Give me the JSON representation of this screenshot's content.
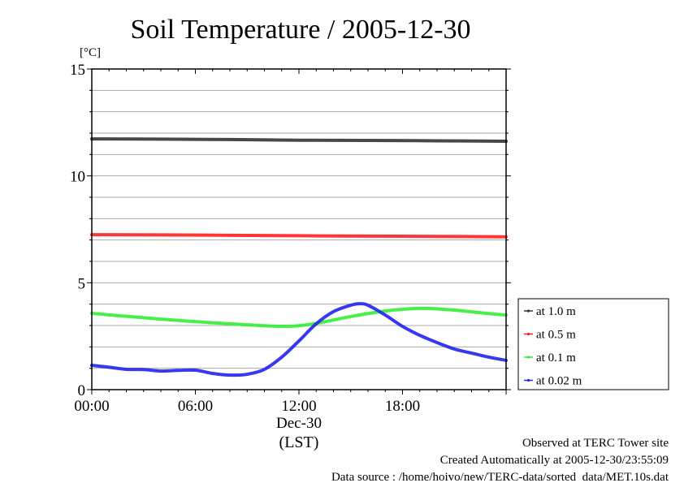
{
  "chart_data": {
    "type": "line",
    "title": "Soil Temperature / 2005-12-30",
    "ylabel": "[°C]",
    "xlabel": "(LST)",
    "date_label": "Dec-30",
    "ylim": [
      0,
      15
    ],
    "xlim": [
      0,
      24
    ],
    "yticks": [
      0,
      5,
      10,
      15
    ],
    "ytick_labels": [
      "0",
      "5",
      "10",
      "15"
    ],
    "xticks": [
      0,
      6,
      12,
      18
    ],
    "xtick_labels": [
      "00:00",
      "06:00",
      "12:00",
      "18:00"
    ],
    "grid": true,
    "legend_position": "right",
    "series": [
      {
        "name": "at 1.0 m",
        "color": "#333333",
        "x": [
          0,
          4,
          8,
          12,
          16,
          20,
          24
        ],
        "values": [
          11.73,
          11.72,
          11.7,
          11.67,
          11.66,
          11.64,
          11.62
        ]
      },
      {
        "name": "at 0.5 m",
        "color": "#ff2020",
        "x": [
          0,
          4,
          8,
          12,
          16,
          20,
          24
        ],
        "values": [
          7.25,
          7.24,
          7.22,
          7.2,
          7.18,
          7.17,
          7.15
        ]
      },
      {
        "name": "at 0.1 m",
        "color": "#33ee33",
        "x": [
          0,
          2,
          4,
          6,
          8,
          10,
          11,
          12,
          13,
          14,
          15,
          16,
          17,
          18,
          19,
          20,
          21,
          22,
          23,
          24
        ],
        "values": [
          3.57,
          3.43,
          3.3,
          3.18,
          3.08,
          2.99,
          2.96,
          2.99,
          3.1,
          3.26,
          3.42,
          3.56,
          3.68,
          3.76,
          3.8,
          3.78,
          3.72,
          3.64,
          3.56,
          3.49
        ]
      },
      {
        "name": "at 0.02 m",
        "color": "#2222ee",
        "x": [
          0,
          1,
          2,
          3,
          4,
          5,
          6,
          7,
          8,
          9,
          10,
          11,
          12,
          13,
          14,
          15,
          15.5,
          16,
          17,
          18,
          19,
          20,
          21,
          22,
          23,
          24
        ],
        "values": [
          1.14,
          1.05,
          0.95,
          0.94,
          0.87,
          0.9,
          0.91,
          0.76,
          0.68,
          0.72,
          0.95,
          1.52,
          2.28,
          3.08,
          3.65,
          3.95,
          4.02,
          3.95,
          3.49,
          2.96,
          2.54,
          2.2,
          1.9,
          1.71,
          1.52,
          1.37
        ]
      }
    ]
  },
  "footer": {
    "observed": "Observed at TERC Tower site",
    "created": "Created Automatically at 2005-12-30/23:55:09",
    "source": "Data source : /home/hoivo/new/TERC-data/sorted  data/MET.10s.dat"
  }
}
